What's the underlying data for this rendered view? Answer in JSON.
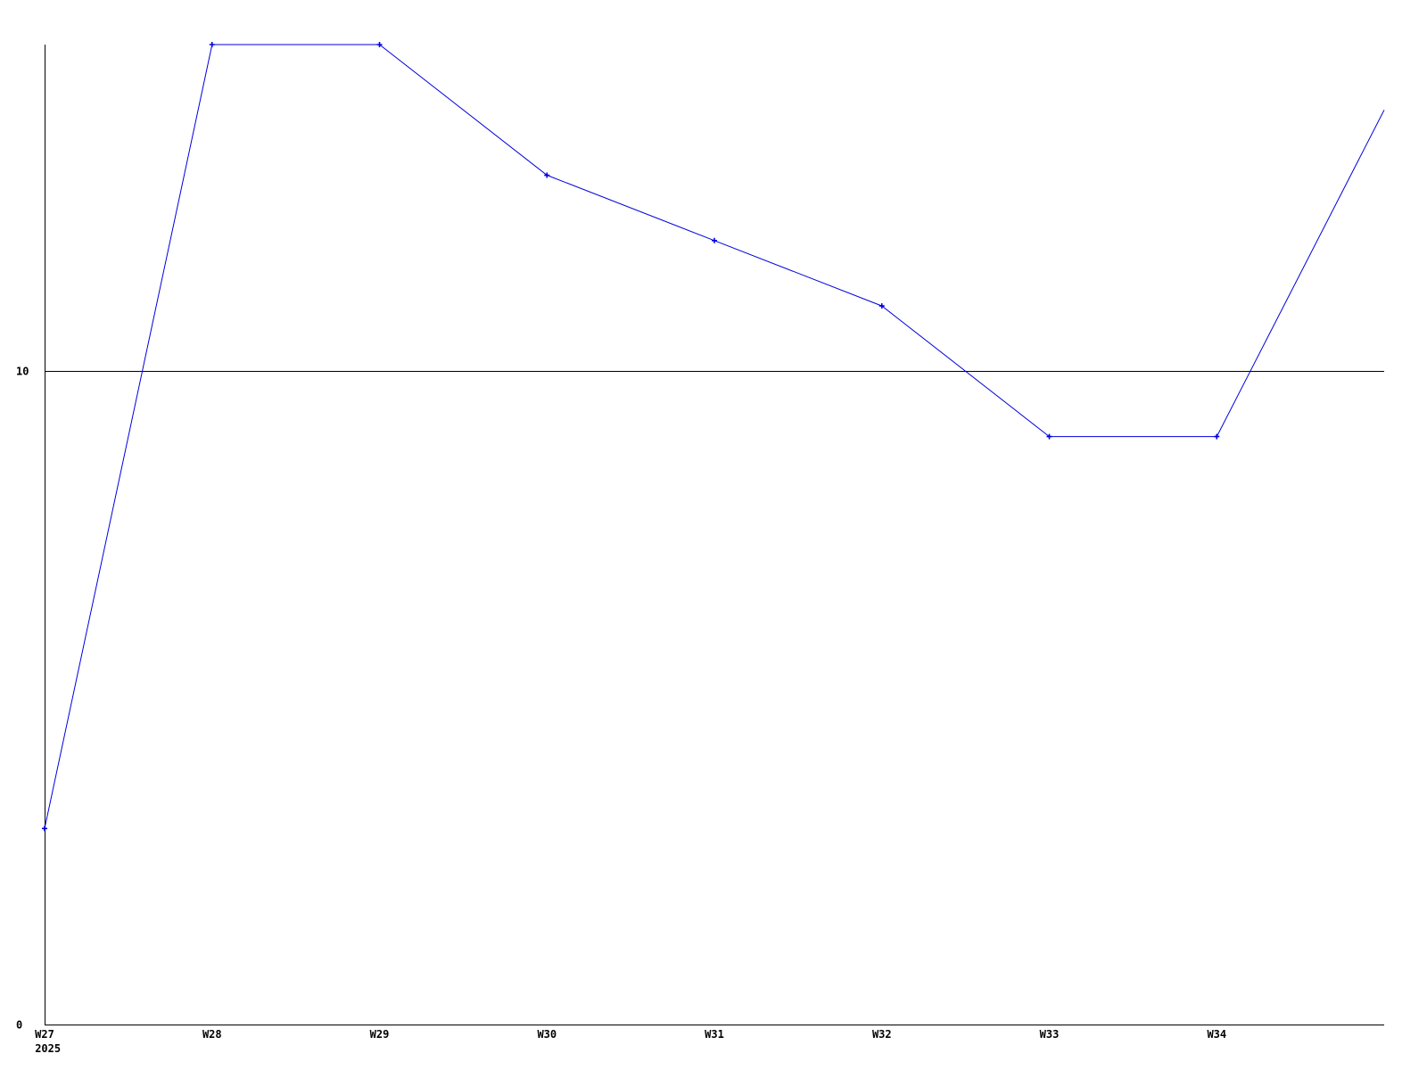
{
  "chart_data": {
    "type": "line",
    "title": "",
    "xlabel": "",
    "ylabel": "",
    "categories": [
      "W27",
      "W28",
      "W29",
      "W30",
      "W31",
      "W32",
      "W33",
      "W34"
    ],
    "x_first_tick_sublabel": "2025",
    "values": [
      3,
      15,
      15,
      13,
      12,
      11,
      9,
      9
    ],
    "partial_end": {
      "x_index": 8,
      "value": 14,
      "marker": false
    },
    "ylim": [
      0,
      15
    ],
    "xlim_indices": [
      0,
      8
    ],
    "yticks": [
      {
        "value": 10,
        "label": "10"
      },
      {
        "value": 0,
        "label": "0"
      }
    ],
    "reference_line_value": 10,
    "grid": "single horizontal reference line at y=10",
    "legend": "none",
    "markers": "plus",
    "colors": {
      "series": "#0000dd",
      "axis": "#000000",
      "reference_line": "#000000",
      "text": "#000000",
      "background": "#ffffff"
    }
  }
}
